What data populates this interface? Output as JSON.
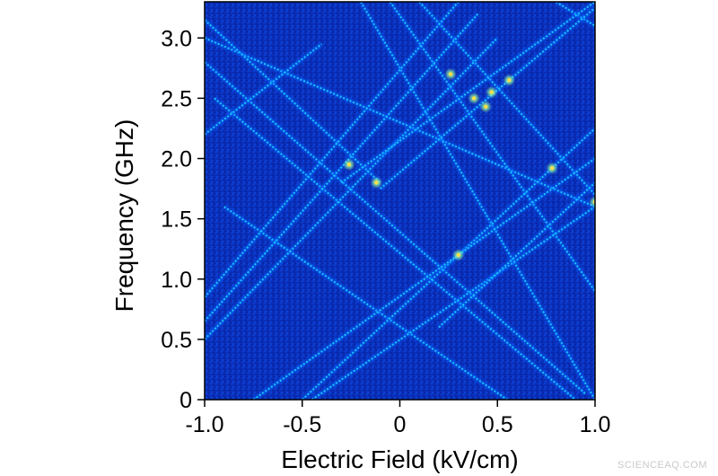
{
  "chart_data": {
    "type": "heatmap",
    "xlabel": "Electric Field (kV/cm)",
    "ylabel": "Frequency (GHz)",
    "xlim": [
      -1.0,
      1.0
    ],
    "ylim": [
      0,
      3.3
    ],
    "x_ticks": [
      -1.0,
      -0.5,
      0,
      0.5,
      1.0
    ],
    "x_tick_labels": [
      "-1.0",
      "-0.5",
      "0",
      "0.5",
      "1.0"
    ],
    "y_ticks": [
      0,
      0.5,
      1.0,
      1.5,
      2.0,
      2.5,
      3.0
    ],
    "y_tick_labels": [
      "0",
      "0.5",
      "1.0",
      "1.5",
      "2.0",
      "2.5",
      "3.0"
    ],
    "colormap": [
      "#00008f",
      "#0020d0",
      "#0a64ff",
      "#20c8ff",
      "#9cff9c",
      "#ffe04a"
    ],
    "background_color": "#0a2fb8",
    "lines": [
      {
        "direction": "falling",
        "points": [
          [
            -1.0,
            3.0
          ],
          [
            1.0,
            1.6
          ]
        ]
      },
      {
        "direction": "falling",
        "points": [
          [
            -1.0,
            3.15
          ],
          [
            -0.1,
            1.8
          ]
        ]
      },
      {
        "direction": "falling",
        "points": [
          [
            -0.2,
            3.3
          ],
          [
            1.0,
            0.0
          ]
        ]
      },
      {
        "direction": "falling",
        "points": [
          [
            -0.05,
            3.3
          ],
          [
            1.0,
            0.9
          ]
        ]
      },
      {
        "direction": "falling",
        "points": [
          [
            0.1,
            3.3
          ],
          [
            1.0,
            1.7
          ]
        ]
      },
      {
        "direction": "falling",
        "points": [
          [
            -0.9,
            1.6
          ],
          [
            0.55,
            0.0
          ]
        ]
      },
      {
        "direction": "falling",
        "points": [
          [
            -0.95,
            2.5
          ],
          [
            0.9,
            0.0
          ]
        ]
      },
      {
        "direction": "falling",
        "points": [
          [
            -1.0,
            2.8
          ],
          [
            0.95,
            0.05
          ]
        ]
      },
      {
        "direction": "falling",
        "points": [
          [
            0.8,
            3.3
          ],
          [
            1.0,
            3.1
          ]
        ]
      },
      {
        "direction": "rising",
        "points": [
          [
            -1.0,
            0.5
          ],
          [
            0.5,
            3.0
          ]
        ]
      },
      {
        "direction": "rising",
        "points": [
          [
            -1.0,
            0.65
          ],
          [
            0.4,
            3.2
          ]
        ]
      },
      {
        "direction": "rising",
        "points": [
          [
            -1.0,
            0.85
          ],
          [
            0.3,
            3.3
          ]
        ]
      },
      {
        "direction": "rising",
        "points": [
          [
            -0.5,
            0.0
          ],
          [
            1.0,
            2.25
          ]
        ]
      },
      {
        "direction": "rising",
        "points": [
          [
            -0.45,
            0.0
          ],
          [
            1.0,
            1.6
          ]
        ]
      },
      {
        "direction": "rising",
        "points": [
          [
            -0.75,
            0.0
          ],
          [
            1.0,
            2.0
          ]
        ]
      },
      {
        "direction": "rising",
        "points": [
          [
            -0.3,
            1.8
          ],
          [
            1.0,
            3.3
          ]
        ]
      },
      {
        "direction": "rising",
        "points": [
          [
            -0.1,
            1.75
          ],
          [
            1.0,
            3.25
          ]
        ]
      },
      {
        "direction": "rising",
        "points": [
          [
            0.2,
            0.6
          ],
          [
            1.0,
            1.8
          ]
        ]
      },
      {
        "direction": "rising",
        "points": [
          [
            -1.0,
            2.2
          ],
          [
            -0.4,
            2.95
          ]
        ]
      }
    ],
    "bright_spots": [
      [
        0.26,
        2.7
      ],
      [
        0.38,
        2.5
      ],
      [
        0.44,
        2.43
      ],
      [
        0.56,
        2.65
      ],
      [
        -0.12,
        1.8
      ],
      [
        0.78,
        1.92
      ],
      [
        1.0,
        1.64
      ],
      [
        0.3,
        1.2
      ],
      [
        -0.26,
        1.95
      ],
      [
        0.47,
        2.55
      ]
    ]
  },
  "watermark": "SCIENCEAQ.COM"
}
